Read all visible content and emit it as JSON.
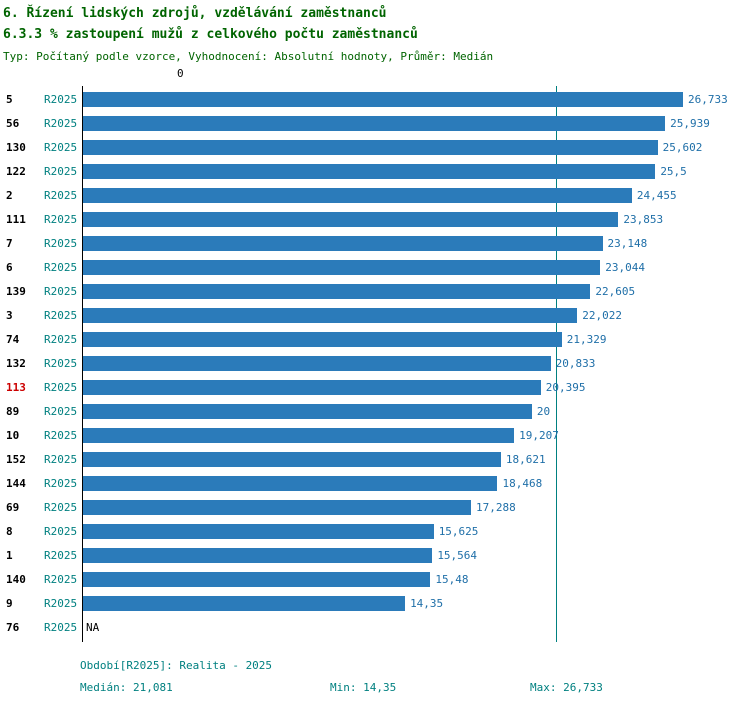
{
  "header": {
    "title1": "6. Řízení lidských zdrojů, vzdělávání zaměstnanců",
    "title2": "6.3.3 % zastoupení mužů z celkového počtu zaměstnanců",
    "subtitle": "Typ: Počítaný podle vzorce, Vyhodnocení: Absolutní hodnoty, Průměr: Medián"
  },
  "chart_data": {
    "type": "bar",
    "orientation": "horizontal",
    "axis_zero_label": "0",
    "period_label": "R2025",
    "xlim": [
      0,
      26.733
    ],
    "median": 21.081,
    "rows": [
      {
        "id": "5",
        "value": 26.733,
        "label": "26,733",
        "highlight": false
      },
      {
        "id": "56",
        "value": 25.939,
        "label": "25,939",
        "highlight": false
      },
      {
        "id": "130",
        "value": 25.602,
        "label": "25,602",
        "highlight": false
      },
      {
        "id": "122",
        "value": 25.5,
        "label": "25,5",
        "highlight": false
      },
      {
        "id": "2",
        "value": 24.455,
        "label": "24,455",
        "highlight": false
      },
      {
        "id": "111",
        "value": 23.853,
        "label": "23,853",
        "highlight": false
      },
      {
        "id": "7",
        "value": 23.148,
        "label": "23,148",
        "highlight": false
      },
      {
        "id": "6",
        "value": 23.044,
        "label": "23,044",
        "highlight": false
      },
      {
        "id": "139",
        "value": 22.605,
        "label": "22,605",
        "highlight": false
      },
      {
        "id": "3",
        "value": 22.022,
        "label": "22,022",
        "highlight": false
      },
      {
        "id": "74",
        "value": 21.329,
        "label": "21,329",
        "highlight": false
      },
      {
        "id": "132",
        "value": 20.833,
        "label": "20,833",
        "highlight": false
      },
      {
        "id": "113",
        "value": 20.395,
        "label": "20,395",
        "highlight": true
      },
      {
        "id": "89",
        "value": 20,
        "label": "20",
        "highlight": false
      },
      {
        "id": "10",
        "value": 19.207,
        "label": "19,207",
        "highlight": false
      },
      {
        "id": "152",
        "value": 18.621,
        "label": "18,621",
        "highlight": false
      },
      {
        "id": "144",
        "value": 18.468,
        "label": "18,468",
        "highlight": false
      },
      {
        "id": "69",
        "value": 17.288,
        "label": "17,288",
        "highlight": false
      },
      {
        "id": "8",
        "value": 15.625,
        "label": "15,625",
        "highlight": false
      },
      {
        "id": "1",
        "value": 15.564,
        "label": "15,564",
        "highlight": false
      },
      {
        "id": "140",
        "value": 15.48,
        "label": "15,48",
        "highlight": false
      },
      {
        "id": "9",
        "value": 14.35,
        "label": "14,35",
        "highlight": false
      },
      {
        "id": "76",
        "value": null,
        "label": "NA",
        "highlight": false
      }
    ]
  },
  "footer": {
    "period": "Období[R2025]: Realita - 2025",
    "median": "Medián: 21,081",
    "min": "Min: 14,35",
    "max": "Max: 26,733"
  },
  "colors": {
    "title": "#006400",
    "teal": "#008080",
    "bar": "#2b7bba",
    "value_label": "#1f6fa8",
    "highlight_id": "#cc0000"
  }
}
